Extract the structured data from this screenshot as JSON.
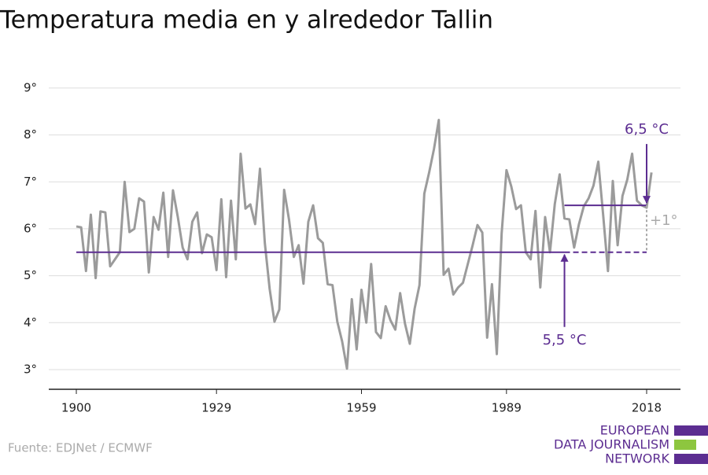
{
  "chart_data": {
    "type": "line",
    "title": "Temperatura media en y alrededor Tallin",
    "source": "Fuente: EDJNet / ECMWF",
    "logo": [
      "EUROPEAN",
      "DATA JOURNALISM",
      "NETWORK"
    ],
    "x": [
      1900,
      1901,
      1902,
      1903,
      1904,
      1905,
      1906,
      1907,
      1908,
      1909,
      1910,
      1911,
      1912,
      1913,
      1914,
      1915,
      1916,
      1917,
      1918,
      1919,
      1920,
      1921,
      1922,
      1923,
      1924,
      1925,
      1926,
      1927,
      1928,
      1929,
      1930,
      1931,
      1932,
      1933,
      1934,
      1935,
      1936,
      1937,
      1938,
      1939,
      1940,
      1941,
      1942,
      1943,
      1944,
      1945,
      1946,
      1947,
      1948,
      1949,
      1950,
      1951,
      1952,
      1953,
      1954,
      1955,
      1956,
      1957,
      1958,
      1959,
      1960,
      1961,
      1962,
      1963,
      1964,
      1965,
      1966,
      1967,
      1968,
      1969,
      1970,
      1971,
      1972,
      1973,
      1974,
      1975,
      1976,
      1977,
      1978,
      1979,
      1980,
      1981,
      1982,
      1983,
      1984,
      1985,
      1986,
      1987,
      1988,
      1989,
      1990,
      1991,
      1992,
      1993,
      1994,
      1995,
      1996,
      1997,
      1998,
      1999,
      2000,
      2001,
      2002,
      2003,
      2004,
      2005,
      2006,
      2007,
      2008,
      2009,
      2010,
      2011,
      2012,
      2013,
      2014,
      2015,
      2016,
      2017,
      2018,
      2019
    ],
    "series": [
      {
        "name": "Temperatura media",
        "color": "#9b9b9b",
        "values": [
          6.05,
          6.03,
          5.1,
          6.3,
          4.95,
          6.37,
          6.35,
          5.2,
          5.35,
          5.5,
          7.0,
          5.93,
          6.0,
          6.65,
          6.58,
          5.07,
          6.25,
          5.98,
          6.77,
          5.4,
          6.82,
          6.25,
          5.6,
          5.35,
          6.15,
          6.35,
          5.48,
          5.88,
          5.82,
          5.12,
          6.63,
          4.97,
          6.6,
          5.35,
          7.6,
          6.43,
          6.52,
          6.1,
          7.28,
          5.7,
          4.72,
          4.02,
          4.28,
          6.83,
          6.2,
          5.4,
          5.65,
          4.83,
          6.15,
          6.5,
          5.8,
          5.7,
          4.82,
          4.8,
          4.02,
          3.6,
          3.02,
          4.5,
          3.43,
          4.7,
          4.0,
          5.25,
          3.8,
          3.67,
          4.35,
          4.05,
          3.85,
          4.63,
          3.98,
          3.55,
          4.3,
          4.8,
          6.75,
          7.2,
          7.7,
          8.32,
          5.02,
          5.15,
          4.6,
          4.75,
          4.85,
          5.25,
          5.65,
          6.08,
          5.92,
          3.68,
          4.82,
          3.33,
          5.9,
          7.25,
          6.9,
          6.42,
          6.5,
          5.5,
          5.35,
          6.38,
          4.75,
          6.25,
          5.5,
          6.53,
          7.16,
          6.22,
          6.2,
          5.6,
          6.1,
          6.48,
          6.65,
          6.92,
          7.43,
          6.3,
          5.1,
          7.02,
          5.65,
          6.7,
          7.05,
          7.6,
          6.6,
          6.5,
          6.45,
          7.2
        ]
      }
    ],
    "reference_lines": [
      {
        "label": "5,5 °C",
        "value": 5.5,
        "from": 1900,
        "to": 2018,
        "solid_to": 2001,
        "color": "#5c2d91"
      },
      {
        "label": "6,5 °C",
        "value": 6.5,
        "from": 2001,
        "to": 2018,
        "color": "#5c2d91"
      }
    ],
    "difference_label": "+1°",
    "xlim": [
      1894.3,
      2025
    ],
    "xticks": [
      1900,
      1929,
      1959,
      1989,
      2018
    ],
    "ylim": [
      2.58,
      9.2
    ],
    "yticks": [
      {
        "value": 3,
        "label": "3°"
      },
      {
        "value": 4,
        "label": "4°"
      },
      {
        "value": 5,
        "label": "5°"
      },
      {
        "value": 6,
        "label": "6°"
      },
      {
        "value": 7,
        "label": "7°"
      },
      {
        "value": 8,
        "label": "8°"
      },
      {
        "value": 9,
        "label": "9°"
      }
    ],
    "grid": true
  }
}
